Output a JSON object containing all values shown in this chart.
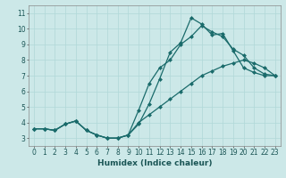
{
  "xlabel": "Humidex (Indice chaleur)",
  "xlim": [
    -0.5,
    23.5
  ],
  "ylim": [
    2.5,
    11.5
  ],
  "xticks": [
    0,
    1,
    2,
    3,
    4,
    5,
    6,
    7,
    8,
    9,
    10,
    11,
    12,
    13,
    14,
    15,
    16,
    17,
    18,
    19,
    20,
    21,
    22,
    23
  ],
  "yticks": [
    3,
    4,
    5,
    6,
    7,
    8,
    9,
    10,
    11
  ],
  "bg_color": "#cce8e8",
  "line_color": "#1a6b6b",
  "grid_color": "#b0d8d8",
  "series": [
    {
      "x": [
        0,
        1,
        2,
        3,
        4,
        5,
        6,
        7,
        8,
        9,
        10,
        11,
        12,
        13,
        14,
        15,
        16,
        17,
        18,
        19,
        20,
        21,
        22,
        23
      ],
      "y": [
        3.6,
        3.6,
        3.5,
        3.9,
        4.1,
        3.5,
        3.2,
        3.0,
        3.0,
        3.2,
        3.9,
        5.2,
        6.8,
        8.5,
        9.1,
        10.7,
        10.3,
        9.6,
        9.7,
        8.6,
        7.5,
        7.2,
        7.0,
        7.0
      ]
    },
    {
      "x": [
        0,
        1,
        2,
        3,
        4,
        5,
        6,
        7,
        8,
        9,
        10,
        11,
        12,
        13,
        14,
        15,
        16,
        17,
        18,
        19,
        20,
        21,
        22,
        23
      ],
      "y": [
        3.6,
        3.6,
        3.5,
        3.9,
        4.1,
        3.5,
        3.2,
        3.0,
        3.0,
        3.2,
        4.8,
        6.5,
        7.5,
        8.0,
        9.0,
        9.5,
        10.2,
        9.8,
        9.5,
        8.7,
        8.3,
        7.5,
        7.1,
        7.0
      ]
    },
    {
      "x": [
        0,
        1,
        2,
        3,
        4,
        5,
        6,
        7,
        8,
        9,
        10,
        11,
        12,
        13,
        14,
        15,
        16,
        17,
        18,
        19,
        20,
        21,
        22,
        23
      ],
      "y": [
        3.6,
        3.6,
        3.5,
        3.9,
        4.1,
        3.5,
        3.2,
        3.0,
        3.0,
        3.2,
        4.0,
        4.5,
        5.0,
        5.5,
        6.0,
        6.5,
        7.0,
        7.3,
        7.6,
        7.8,
        8.0,
        7.8,
        7.5,
        7.0
      ]
    }
  ],
  "marker": "D",
  "markersize": 2.0,
  "linewidth": 0.9,
  "xlabel_fontsize": 6.5,
  "tick_fontsize": 5.5
}
